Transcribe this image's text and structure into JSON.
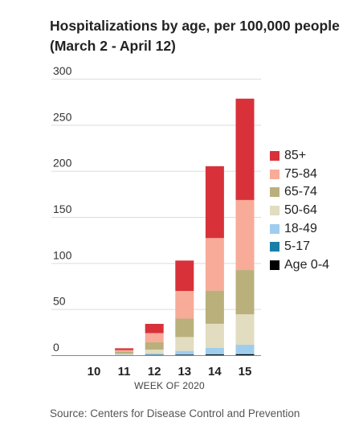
{
  "title_line1": "Hospitalizations by age, per 100,000 people",
  "title_line2": "(March 2 - April 12)",
  "source": "Source: Centers for Disease Control and Prevention",
  "chart_data": {
    "type": "bar",
    "stacked": true,
    "title": "Hospitalizations by age, per 100,000 people (March 2 - April 12)",
    "xlabel": "WEEK OF 2020",
    "ylabel": "",
    "categories": [
      "10",
      "11",
      "12",
      "13",
      "14",
      "15"
    ],
    "ylim": [
      0,
      300
    ],
    "yticks": [
      0,
      50,
      100,
      150,
      200,
      250,
      300
    ],
    "grid": true,
    "legend_position": "right",
    "series": [
      {
        "name": "Age 0-4",
        "color": "#000000",
        "values": [
          0,
          0,
          0.3,
          0.5,
          0.8,
          1
        ]
      },
      {
        "name": "5-17",
        "color": "#1a7fa8",
        "values": [
          0,
          0,
          0.1,
          0.2,
          0.3,
          0.4
        ]
      },
      {
        "name": "18-49",
        "color": "#9fcdee",
        "values": [
          0,
          0.5,
          1.6,
          4,
          7,
          10
        ]
      },
      {
        "name": "50-64",
        "color": "#e2dcc0",
        "values": [
          0,
          1,
          4,
          15,
          26,
          33
        ]
      },
      {
        "name": "65-74",
        "color": "#bab07c",
        "values": [
          0,
          2,
          8,
          20,
          36,
          48
        ]
      },
      {
        "name": "75-84",
        "color": "#f7ab98",
        "values": [
          0,
          2,
          10,
          30,
          57,
          76
        ]
      },
      {
        "name": "85+",
        "color": "#d8313a",
        "values": [
          0,
          2,
          10,
          33,
          78,
          110
        ]
      }
    ]
  }
}
